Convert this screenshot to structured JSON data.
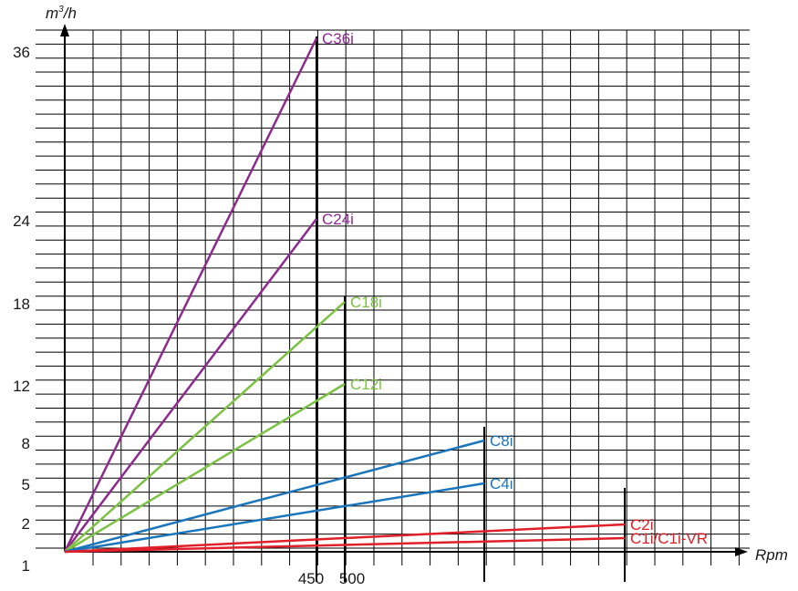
{
  "chart_data": {
    "type": "line",
    "xlabel": "Rpm",
    "ylabel": "m³/h",
    "ylabel_main": "m",
    "ylabel_sup": "3",
    "ylabel_tail": "/h",
    "x_ticks": [
      "450",
      "500"
    ],
    "y_ticks": [
      "1",
      "2",
      "5",
      "8",
      "12",
      "18",
      "24",
      "36"
    ],
    "grid": true,
    "colors": {
      "purple": "#8e2a8e",
      "green": "#7cc242",
      "blue": "#1b75bb",
      "red": "#e0202a",
      "grid": "#000000"
    },
    "series": [
      {
        "name": "C36i",
        "color": "#8e2a8e",
        "x_end": 450,
        "y_end": 36
      },
      {
        "name": "C24i",
        "color": "#8e2a8e",
        "x_end": 450,
        "y_end": 24
      },
      {
        "name": "C18i",
        "color": "#7cc242",
        "x_end": 500,
        "y_end": 18
      },
      {
        "name": "C12i",
        "color": "#7cc242",
        "x_end": 500,
        "y_end": 12
      },
      {
        "name": "C8i",
        "color": "#1b75bb",
        "x_end": 750,
        "y_end": 8
      },
      {
        "name": "C4i",
        "color": "#1b75bb",
        "x_end": 750,
        "y_end": 5
      },
      {
        "name": "C2i",
        "color": "#e0202a",
        "x_end": 1000,
        "y_end": 2
      },
      {
        "name": "C1i/C1i-VR",
        "color": "#e0202a",
        "x_end": 1000,
        "y_end": 1
      }
    ]
  }
}
